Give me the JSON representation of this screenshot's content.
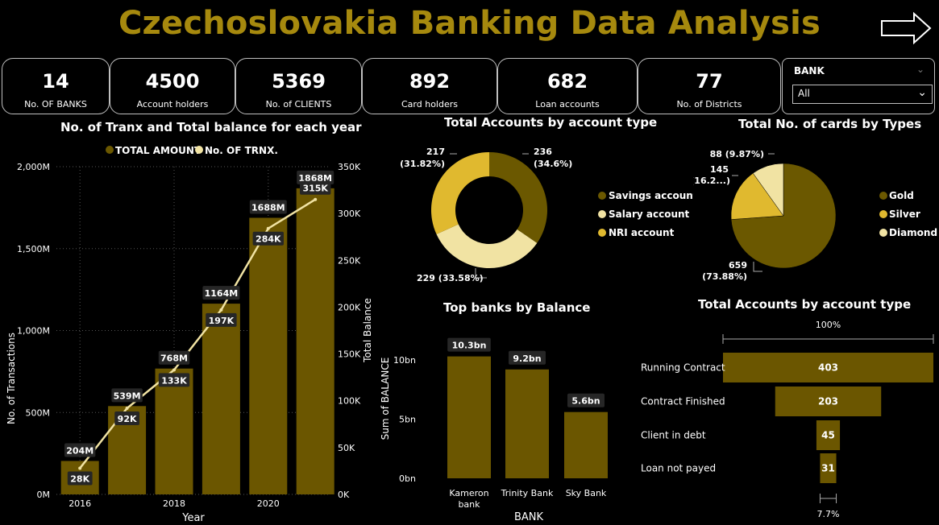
{
  "header": {
    "title": "Czechoslovakia Banking Data Analysis"
  },
  "kpis": [
    {
      "value": "14",
      "label": "No. OF BANKS"
    },
    {
      "value": "4500",
      "label": "Account holders"
    },
    {
      "value": "5369",
      "label": "No. of CLIENTS"
    },
    {
      "value": "892",
      "label": "Card holders"
    },
    {
      "value": "682",
      "label": "Loan accounts"
    },
    {
      "value": "77",
      "label": "No. of Districts"
    }
  ],
  "slicer": {
    "label": "BANK",
    "selected": "All"
  },
  "colors": {
    "gold": "#A6890E",
    "dark_gold": "#6B5800",
    "mustard": "#E0B92F",
    "cream": "#F1E3A3",
    "bar": "#6B5600"
  },
  "chart_data": [
    {
      "type": "bar",
      "id": "tranx",
      "title": "No. of Tranx and Total balance for each year",
      "legend": [
        "TOTAL AMOUNT",
        "No. OF TRNX."
      ],
      "xlabel": "Year",
      "ylabel": "No. of Transactions",
      "y2label": "Total Balance",
      "x_ticks": [
        "2016",
        "2018",
        "2020"
      ],
      "y_ticks": [
        "0M",
        "500M",
        "1,000M",
        "1,500M",
        "2,000M"
      ],
      "y2_ticks": [
        "0K",
        "50K",
        "100K",
        "150K",
        "200K",
        "250K",
        "300K",
        "350K"
      ],
      "ylim": [
        0,
        2000
      ],
      "y2lim": [
        0,
        350
      ],
      "bar_values": [
        204,
        539,
        768,
        1164,
        1688,
        1868
      ],
      "bar_labels": [
        "204M",
        "539M",
        "768M",
        "1164M",
        "1688M",
        "1868M"
      ],
      "line_values": [
        28,
        92,
        133,
        197,
        284,
        315
      ],
      "line_labels": [
        "28K",
        "92K",
        "133K",
        "197K",
        "284K",
        "315K"
      ]
    },
    {
      "type": "pie",
      "id": "acct_type",
      "title": "Total Accounts by account type",
      "values": [
        236,
        229,
        217
      ],
      "legend": [
        "Savings account",
        "Salary account",
        "NRI account"
      ],
      "labels": [
        {
          "l1": "236",
          "l2": "(34.6%)"
        },
        {
          "l1": "229 (33.58%)",
          "l2": ""
        },
        {
          "l1": "217",
          "l2": "(31.82%)"
        }
      ]
    },
    {
      "type": "pie",
      "id": "cards",
      "title": "Total No. of cards by Types",
      "values": [
        659,
        145,
        88
      ],
      "legend": [
        "Gold",
        "Silver",
        "Diamond"
      ],
      "labels": [
        {
          "l1": "659",
          "l2": "(73.88%)"
        },
        {
          "l1": "145",
          "l2": "(16.2...)"
        },
        {
          "l1": "88 (9.87%)",
          "l2": ""
        }
      ]
    },
    {
      "type": "bar",
      "id": "banks",
      "title": "Top banks by Balance",
      "categories": [
        "Kameron bank",
        "Trinity Bank",
        "Sky Bank"
      ],
      "values": [
        10.3,
        9.2,
        5.6
      ],
      "value_labels": [
        "10.3bn",
        "9.2bn",
        "5.6bn"
      ],
      "y_ticks": [
        "0bn",
        "5bn",
        "10bn"
      ],
      "ylim": [
        0,
        11.5
      ],
      "xlabel": "BANK",
      "ylabel": "Sum of BALANCE"
    },
    {
      "type": "bar",
      "id": "loans",
      "title": "Total Accounts by account type",
      "categories": [
        "Running Contract",
        "Contract Finished",
        "Client in debt",
        "Loan not payed"
      ],
      "values": [
        403,
        203,
        45,
        31
      ],
      "top_pct": "100%",
      "bottom_pct": "7.7%"
    }
  ]
}
